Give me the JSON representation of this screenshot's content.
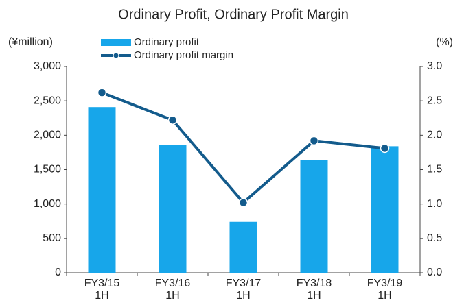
{
  "chart_data": {
    "type": "bar_line",
    "title": "Ordinary Profit, Ordinary Profit Margin",
    "ylabel": "(¥million)",
    "y2label": "(%)",
    "categories": [
      "FY3/15\n1H",
      "FY3/16\n1H",
      "FY3/17\n1H",
      "FY3/18\n1H",
      "FY3/19\n1H"
    ],
    "series": [
      {
        "name": "Ordinary profit",
        "type": "bar",
        "color": "#17a6ea",
        "values": [
          2410,
          1860,
          740,
          1640,
          1840
        ]
      },
      {
        "name": "Ordinary profit margin",
        "type": "line",
        "color": "#135b8c",
        "axis": "y2",
        "values": [
          2.62,
          2.22,
          1.02,
          1.92,
          1.81
        ]
      }
    ],
    "ylim": [
      0,
      3000
    ],
    "yticks": [
      0,
      500,
      {
        "value": 1000,
        "label": "1,000"
      },
      {
        "value": 1500,
        "label": "1,500"
      },
      {
        "value": 2000,
        "label": "2,000"
      },
      {
        "value": 2500,
        "label": "2,500"
      },
      {
        "value": 3000,
        "label": "3,000"
      }
    ],
    "y2lim": [
      0,
      3
    ],
    "y2ticks": [
      {
        "value": 0,
        "label": "0.0"
      },
      {
        "value": 0.5,
        "label": "0.5"
      },
      {
        "value": 1,
        "label": "1.0"
      },
      {
        "value": 1.5,
        "label": "1.5"
      },
      {
        "value": 2,
        "label": "2.0"
      },
      {
        "value": 2.5,
        "label": "2.5"
      },
      {
        "value": 3,
        "label": "3.0"
      }
    ],
    "grid": false
  }
}
